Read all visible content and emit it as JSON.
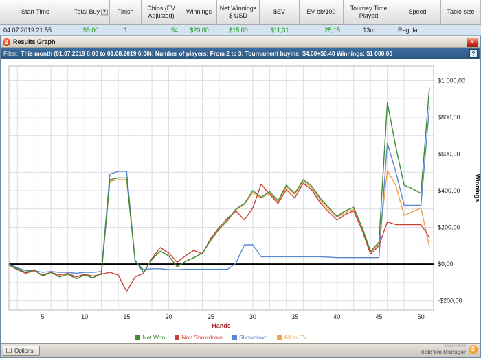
{
  "table": {
    "headers": [
      "Start Time",
      "Total Buy-in",
      "Finish",
      "Chips (EV Adjusted)",
      "Winnings",
      "Net Winnings $ USD",
      "$EV",
      "EV bb/100",
      "Tourney Time Played",
      "Speed",
      "Table size"
    ],
    "cells": [
      "04.07.2019 21:55",
      "$5,00",
      "1",
      "54",
      "$20,00",
      "$15,00",
      "$11,31",
      "25,15",
      "13m",
      "Regular",
      ""
    ]
  },
  "window": {
    "title": "Results Graph"
  },
  "filter": {
    "label": "Filter:",
    "text": "This month (01.07.2019 6:00 to 01.08.2019 6:00); Number of players: From 2 to 3; Tournament buyins: $4,60+$0,40 Winnings: $1 000,00"
  },
  "icons": {
    "close": "✕",
    "help": "?",
    "sort_arrow": "▼",
    "logo_badge": "2"
  },
  "footer": {
    "options_label": "Options",
    "powered_by": "Powered by",
    "brand": "Hold'em Manager"
  },
  "chart_data": {
    "type": "line",
    "title": "Results Graph",
    "xlabel": "Hands",
    "ylabel": "Winnings",
    "xlim": [
      1,
      51.5
    ],
    "ylim": [
      -250,
      1080
    ],
    "grid": {
      "x_step": 2,
      "y_step": 100
    },
    "x_ticks": [
      5,
      10,
      15,
      20,
      25,
      30,
      35,
      40,
      45,
      50
    ],
    "y_tick_values": [
      -200,
      0,
      200,
      400,
      600,
      800,
      1000
    ],
    "y_tick_labels": [
      "-$200,00",
      "$0,00",
      "$200,00",
      "$400,00",
      "$600,00",
      "$800,00",
      "$1 000,00"
    ],
    "legend_position": "bottom",
    "x": [
      1,
      2,
      3,
      4,
      5,
      6,
      7,
      8,
      9,
      10,
      11,
      12,
      13,
      14,
      15,
      16,
      17,
      18,
      19,
      20,
      21,
      22,
      23,
      24,
      25,
      26,
      27,
      28,
      29,
      30,
      31,
      32,
      33,
      34,
      35,
      36,
      37,
      38,
      39,
      40,
      41,
      42,
      43,
      44,
      45,
      46,
      47,
      48,
      49,
      50,
      51
    ],
    "series": [
      {
        "name": "Net Won",
        "color": "#3d8b37",
        "values": [
          -5,
          -25,
          -45,
          -30,
          -65,
          -45,
          -70,
          -55,
          -80,
          -60,
          -75,
          -50,
          460,
          470,
          470,
          20,
          -45,
          25,
          70,
          45,
          -15,
          15,
          35,
          60,
          130,
          190,
          240,
          300,
          330,
          400,
          365,
          395,
          345,
          430,
          385,
          460,
          425,
          360,
          310,
          260,
          290,
          310,
          200,
          70,
          120,
          880,
          640,
          430,
          410,
          385,
          960
        ]
      },
      {
        "name": "Non Showdown",
        "color": "#c94136",
        "values": [
          -5,
          -30,
          -50,
          -35,
          -60,
          -45,
          -60,
          -50,
          -70,
          -55,
          -65,
          -55,
          -45,
          -60,
          -150,
          -70,
          -50,
          30,
          90,
          60,
          10,
          45,
          75,
          55,
          140,
          200,
          250,
          290,
          240,
          305,
          435,
          380,
          330,
          405,
          360,
          440,
          405,
          335,
          285,
          240,
          270,
          290,
          185,
          55,
          100,
          230,
          215,
          215,
          215,
          215,
          145
        ]
      },
      {
        "name": "Showdown",
        "color": "#5b87cf",
        "values": [
          0,
          -20,
          -35,
          -35,
          -45,
          -40,
          -45,
          -45,
          -50,
          -45,
          -45,
          -40,
          490,
          505,
          505,
          15,
          -30,
          -25,
          -25,
          -30,
          -30,
          -28,
          -28,
          -28,
          -28,
          -28,
          -28,
          5,
          105,
          105,
          40,
          40,
          40,
          40,
          40,
          40,
          40,
          40,
          38,
          35,
          35,
          35,
          35,
          35,
          35,
          660,
          505,
          320,
          320,
          320,
          855
        ]
      },
      {
        "name": "All-In EV",
        "color": "#f0a24e",
        "values": [
          -5,
          -25,
          -45,
          -30,
          -65,
          -45,
          -70,
          -55,
          -80,
          -60,
          -75,
          -50,
          450,
          460,
          460,
          20,
          -45,
          25,
          70,
          45,
          -15,
          15,
          35,
          60,
          130,
          190,
          235,
          295,
          325,
          390,
          360,
          385,
          340,
          420,
          380,
          450,
          415,
          350,
          300,
          255,
          280,
          300,
          195,
          65,
          110,
          510,
          430,
          265,
          285,
          305,
          95
        ]
      }
    ]
  }
}
